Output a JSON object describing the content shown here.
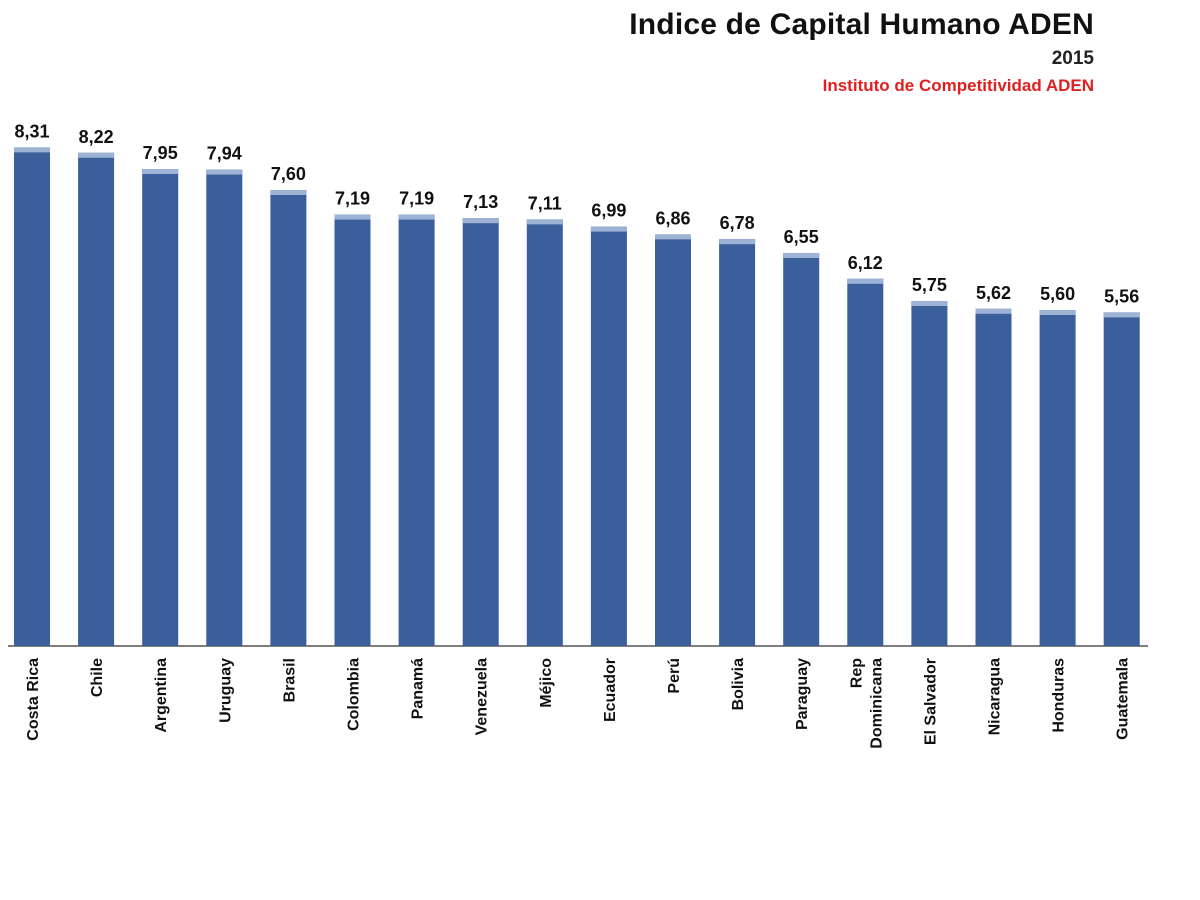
{
  "colors": {
    "bar": "#3a5f9a",
    "bar_top": "#9db3d6",
    "source": "#e02020"
  },
  "chart_data": {
    "type": "bar",
    "title": "Indice de Capital Humano ADEN",
    "subtitle": "2015",
    "source": "Instituto de Competitividad ADEN",
    "categories": [
      "Costa Rica",
      "Chile",
      "Argentina",
      "Uruguay",
      "Brasil",
      "Colombia",
      "Panamá",
      "Venezuela",
      "Méjico",
      "Ecuador",
      "Perú",
      "Bolivia",
      "Paraguay",
      "Rep Dominicana",
      "El Salvador",
      "Nicaragua",
      "Honduras",
      "Guatemala"
    ],
    "value_labels": [
      "8,31",
      "8,22",
      "7,95",
      "7,94",
      "7,60",
      "7,19",
      "7,19",
      "7,13",
      "7,11",
      "6,99",
      "6,86",
      "6,78",
      "6,55",
      "6,12",
      "5,75",
      "5,62",
      "5,60",
      "5,56"
    ],
    "values": [
      8.31,
      8.22,
      7.95,
      7.94,
      7.6,
      7.19,
      7.19,
      7.13,
      7.11,
      6.99,
      6.86,
      6.78,
      6.55,
      6.12,
      5.75,
      5.62,
      5.6,
      5.56
    ],
    "ylim": [
      0,
      9
    ],
    "grid": false,
    "legend": "none"
  }
}
